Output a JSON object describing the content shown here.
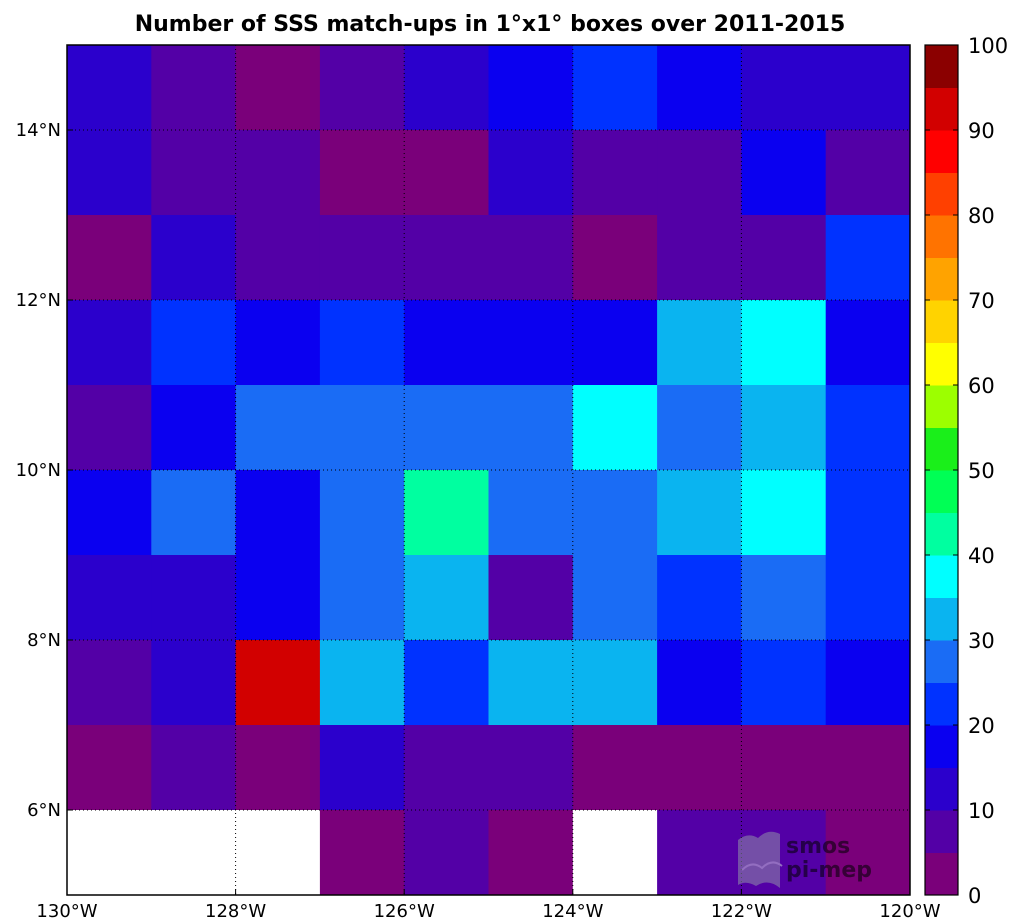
{
  "title": "Number of SSS match-ups in 1°x1° boxes over 2011-2015",
  "logo_text": [
    "smos",
    "pi-mep"
  ],
  "chart_data": {
    "type": "heatmap",
    "title": "Number of SSS match-ups in 1°x1° boxes over 2011-2015",
    "x_ticks": [
      "130°W",
      "128°W",
      "126°W",
      "124°W",
      "122°W",
      "120°W"
    ],
    "x_tick_values": [
      -130,
      -128,
      -126,
      -124,
      -122,
      -120
    ],
    "y_ticks": [
      "6°N",
      "8°N",
      "10°N",
      "12°N",
      "14°N"
    ],
    "y_tick_values": [
      6,
      8,
      10,
      12,
      14
    ],
    "xlim": [
      -130,
      -120
    ],
    "ylim": [
      5,
      15
    ],
    "grid": "dotted",
    "cell_size_deg": 1,
    "lon_centers": [
      -129.5,
      -128.5,
      -127.5,
      -126.5,
      -125.5,
      -124.5,
      -123.5,
      -122.5,
      -121.5,
      -120.5
    ],
    "lat_centers_top_to_bottom": [
      14.5,
      13.5,
      12.5,
      11.5,
      10.5,
      9.5,
      8.5,
      7.5,
      6.5,
      5.5
    ],
    "values": [
      [
        12,
        8,
        2,
        8,
        12,
        18,
        22,
        18,
        12,
        12
      ],
      [
        12,
        8,
        8,
        2,
        2,
        12,
        8,
        8,
        18,
        8
      ],
      [
        2,
        12,
        8,
        8,
        8,
        8,
        2,
        8,
        8,
        22
      ],
      [
        12,
        22,
        18,
        22,
        18,
        18,
        18,
        33,
        37,
        18
      ],
      [
        8,
        18,
        28,
        28,
        28,
        28,
        37,
        28,
        33,
        22
      ],
      [
        18,
        28,
        18,
        28,
        43,
        28,
        28,
        33,
        37,
        22
      ],
      [
        12,
        12,
        18,
        28,
        33,
        8,
        28,
        22,
        28,
        22
      ],
      [
        8,
        12,
        92,
        33,
        22,
        33,
        33,
        18,
        22,
        18
      ],
      [
        2,
        8,
        2,
        12,
        8,
        8,
        2,
        2,
        2,
        2
      ],
      [
        null,
        null,
        null,
        2,
        8,
        2,
        null,
        8,
        8,
        2
      ]
    ],
    "colorbar": {
      "min": 0,
      "max": 100,
      "step": 5,
      "ticks": [
        "0",
        "10",
        "20",
        "30",
        "40",
        "50",
        "60",
        "70",
        "80",
        "90",
        "100"
      ],
      "tick_values": [
        0,
        10,
        20,
        30,
        40,
        50,
        60,
        70,
        80,
        90,
        100
      ],
      "colors": [
        "#7a007a",
        "#5300a6",
        "#2b00cc",
        "#0a00f0",
        "#0032ff",
        "#1a6cf5",
        "#0ab4f0",
        "#00ffff",
        "#00ffa0",
        "#00ff55",
        "#1aef1a",
        "#9cff00",
        "#ffff00",
        "#ffd300",
        "#ffa300",
        "#ff7300",
        "#ff4000",
        "#ff0000",
        "#d20000",
        "#8b0000"
      ]
    },
    "missing_color": "#ffffff"
  }
}
